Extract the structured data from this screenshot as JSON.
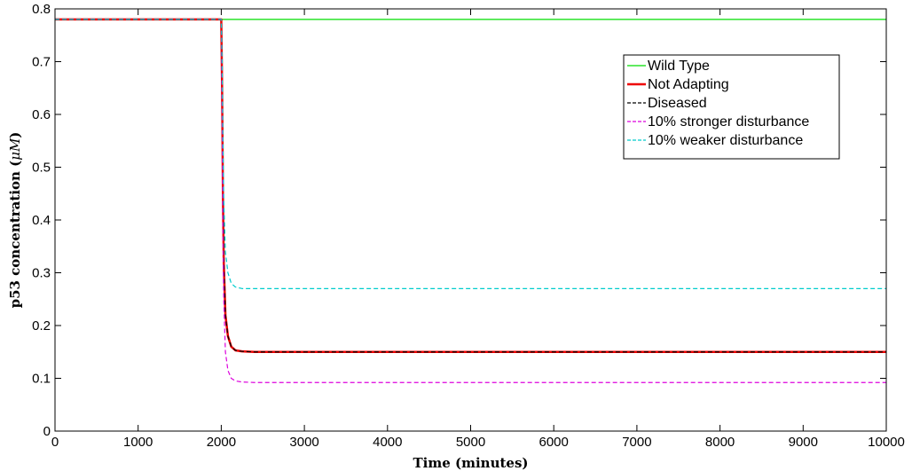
{
  "chart_data": {
    "type": "line",
    "title": "",
    "xlabel": "Time (minutes)",
    "ylabel": "p53 concentration (μM)",
    "ylabel_prefix": "p53 concentration (",
    "ylabel_unit": "μM",
    "ylabel_suffix": ")",
    "xlim": [
      0,
      10000
    ],
    "ylim": [
      0,
      0.8
    ],
    "x_ticks": [
      0,
      1000,
      2000,
      3000,
      4000,
      5000,
      6000,
      7000,
      8000,
      9000,
      10000
    ],
    "x_tick_labels": [
      "0",
      "1000",
      "2000",
      "3000",
      "4000",
      "5000",
      "6000",
      "7000",
      "8000",
      "9000",
      "10000"
    ],
    "y_ticks": [
      0,
      0.1,
      0.2,
      0.3,
      0.4,
      0.5,
      0.6,
      0.7,
      0.8
    ],
    "y_tick_labels": [
      "0",
      "0.1",
      "0.2",
      "0.3",
      "0.4",
      "0.5",
      "0.6",
      "0.7",
      "0.8"
    ],
    "grid": false,
    "legend_position": "top-right",
    "series": [
      {
        "name": "Wild Type",
        "color": "#00dd00",
        "style": "solid",
        "x": [
          0,
          10000
        ],
        "y": [
          0.78,
          0.78
        ]
      },
      {
        "name": "Not Adapting",
        "color": "#ee0000",
        "style": "solid-thick",
        "x": [
          0,
          2000,
          2010,
          2020,
          2030,
          2050,
          2080,
          2120,
          2170,
          2250,
          2400,
          10000
        ],
        "y": [
          0.78,
          0.78,
          0.65,
          0.45,
          0.32,
          0.22,
          0.18,
          0.16,
          0.153,
          0.151,
          0.15,
          0.15
        ]
      },
      {
        "name": "Diseased",
        "color": "#000000",
        "style": "dashed",
        "x": [
          0,
          2000,
          2010,
          2020,
          2030,
          2050,
          2080,
          2120,
          2170,
          2250,
          2400,
          10000
        ],
        "y": [
          0.78,
          0.78,
          0.65,
          0.45,
          0.32,
          0.22,
          0.18,
          0.16,
          0.153,
          0.151,
          0.15,
          0.15
        ]
      },
      {
        "name": "10% stronger disturbance",
        "color": "#dd00dd",
        "style": "dashed",
        "x": [
          0,
          2000,
          2010,
          2020,
          2030,
          2050,
          2080,
          2120,
          2170,
          2250,
          2400,
          10000
        ],
        "y": [
          0.78,
          0.78,
          0.6,
          0.38,
          0.25,
          0.15,
          0.115,
          0.1,
          0.095,
          0.093,
          0.092,
          0.092
        ]
      },
      {
        "name": "10% weaker disturbance",
        "color": "#00cccc",
        "style": "dashed",
        "x": [
          0,
          2000,
          2010,
          2020,
          2030,
          2050,
          2080,
          2120,
          2170,
          2250,
          2400,
          10000
        ],
        "y": [
          0.78,
          0.78,
          0.7,
          0.55,
          0.44,
          0.34,
          0.3,
          0.28,
          0.273,
          0.27,
          0.27,
          0.27
        ]
      }
    ]
  }
}
